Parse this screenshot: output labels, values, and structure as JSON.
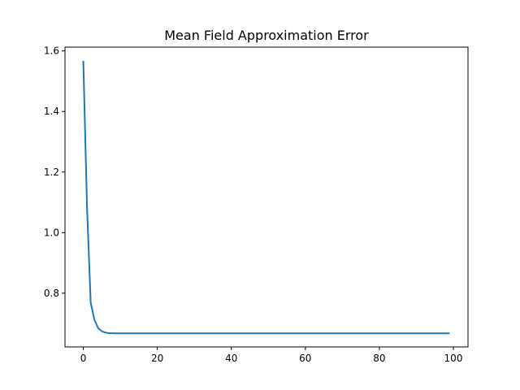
{
  "chart_data": {
    "type": "line",
    "title": "Mean Field Approximation Error",
    "xlabel": "",
    "ylabel": "",
    "xlim": [
      -4.95,
      103.95
    ],
    "ylim": [
      0.6225,
      1.6125
    ],
    "grid": false,
    "x_ticks": [
      {
        "value": 0,
        "label": "0"
      },
      {
        "value": 20,
        "label": "20"
      },
      {
        "value": 40,
        "label": "40"
      },
      {
        "value": 60,
        "label": "60"
      },
      {
        "value": 80,
        "label": "80"
      },
      {
        "value": 100,
        "label": "100"
      }
    ],
    "y_ticks": [
      {
        "value": 0.8,
        "label": "0.8"
      },
      {
        "value": 1.0,
        "label": "1.0"
      },
      {
        "value": 1.2,
        "label": "1.2"
      },
      {
        "value": 1.4,
        "label": "1.4"
      },
      {
        "value": 1.6,
        "label": "1.6"
      }
    ],
    "series": [
      {
        "color": "#1f77b4",
        "x": [
          0,
          1,
          2,
          3,
          4,
          5,
          6,
          7,
          8,
          9,
          10,
          20,
          30,
          40,
          50,
          60,
          70,
          80,
          90,
          99
        ],
        "y": [
          1.567,
          1.085,
          0.768,
          0.712,
          0.685,
          0.674,
          0.67,
          0.668,
          0.6675,
          0.6675,
          0.6675,
          0.6675,
          0.6675,
          0.6675,
          0.6675,
          0.6675,
          0.6675,
          0.6675,
          0.6675,
          0.6675
        ]
      }
    ]
  }
}
